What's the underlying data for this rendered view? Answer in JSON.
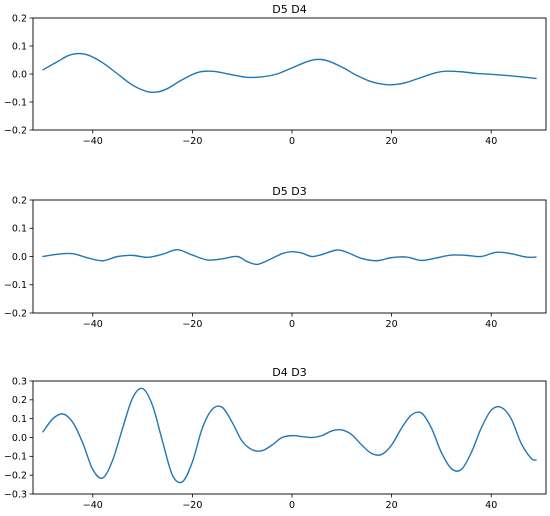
{
  "chart_data": [
    {
      "type": "line",
      "title": "D5  D4",
      "xlabel": "",
      "ylabel": "",
      "xlim": [
        -52,
        51
      ],
      "ylim": [
        -0.2,
        0.2
      ],
      "xticks": [
        -40,
        -20,
        0,
        20,
        40
      ],
      "yticks": [
        -0.2,
        -0.1,
        0.0,
        0.1,
        0.2
      ],
      "ytick_labels": [
        "−0.2",
        "−0.1",
        "0.0",
        "0.1",
        "0.2"
      ],
      "xtick_labels": [
        "−40",
        "−20",
        "0",
        "20",
        "40"
      ],
      "color": "#1f77b4",
      "series": [
        {
          "x": [
            -50,
            -47,
            -45,
            -43,
            -41,
            -38,
            -35,
            -32,
            -29,
            -27,
            -25,
            -22,
            -19,
            -17,
            -15,
            -12,
            -9,
            -6,
            -3,
            0,
            3,
            5,
            7,
            10,
            13,
            16,
            19,
            21,
            23,
            26,
            29,
            31,
            34,
            37,
            40,
            43,
            46,
            49
          ],
          "values": [
            0.015,
            0.045,
            0.065,
            0.073,
            0.068,
            0.04,
            0.0,
            -0.04,
            -0.063,
            -0.064,
            -0.052,
            -0.02,
            0.005,
            0.01,
            0.008,
            -0.003,
            -0.012,
            -0.01,
            0.0,
            0.022,
            0.044,
            0.052,
            0.048,
            0.025,
            -0.005,
            -0.028,
            -0.038,
            -0.037,
            -0.03,
            -0.012,
            0.005,
            0.01,
            0.008,
            0.002,
            -0.001,
            -0.005,
            -0.01,
            -0.016
          ]
        }
      ]
    },
    {
      "type": "line",
      "title": "D5  D3",
      "xlabel": "",
      "ylabel": "",
      "xlim": [
        -52,
        51
      ],
      "ylim": [
        -0.2,
        0.2
      ],
      "xticks": [
        -40,
        -20,
        0,
        20,
        40
      ],
      "yticks": [
        -0.2,
        -0.1,
        0.0,
        0.1,
        0.2
      ],
      "ytick_labels": [
        "−0.2",
        "−0.1",
        "0.0",
        "0.1",
        "0.2"
      ],
      "xtick_labels": [
        "−40",
        "−20",
        "0",
        "20",
        "40"
      ],
      "color": "#1f77b4",
      "series": [
        {
          "x": [
            -50,
            -47,
            -44,
            -41,
            -38,
            -35,
            -32,
            -29,
            -26,
            -23,
            -20,
            -17,
            -14,
            -11,
            -9,
            -7,
            -5,
            -2,
            0,
            2,
            4,
            6,
            9,
            11,
            14,
            17,
            20,
            23,
            26,
            29,
            32,
            35,
            38,
            41,
            44,
            47,
            49
          ],
          "values": [
            0.0,
            0.008,
            0.01,
            -0.005,
            -0.015,
            0.0,
            0.004,
            -0.003,
            0.008,
            0.024,
            0.005,
            -0.012,
            -0.008,
            0.0,
            -0.018,
            -0.028,
            -0.015,
            0.01,
            0.017,
            0.012,
            0.0,
            0.007,
            0.023,
            0.015,
            -0.007,
            -0.015,
            -0.004,
            -0.002,
            -0.014,
            -0.005,
            0.005,
            0.004,
            0.0,
            0.015,
            0.01,
            -0.002,
            -0.002
          ]
        }
      ]
    },
    {
      "type": "line",
      "title": "D4  D3",
      "xlabel": "",
      "ylabel": "",
      "xlim": [
        -52,
        51
      ],
      "ylim": [
        -0.3,
        0.3
      ],
      "xticks": [
        -40,
        -20,
        0,
        20,
        40
      ],
      "yticks": [
        -0.3,
        -0.2,
        -0.1,
        0.0,
        0.1,
        0.2,
        0.3
      ],
      "ytick_labels": [
        "−0.3",
        "−0.2",
        "−0.1",
        "0.0",
        "0.1",
        "0.2",
        "0.3"
      ],
      "xtick_labels": [
        "−40",
        "−20",
        "0",
        "20",
        "40"
      ],
      "color": "#1f77b4",
      "series": [
        {
          "x": [
            -50,
            -48,
            -46,
            -44,
            -42,
            -40,
            -38,
            -36,
            -34,
            -32,
            -30,
            -28,
            -26,
            -24,
            -22,
            -20,
            -18,
            -16,
            -14,
            -12,
            -10,
            -8,
            -6,
            -4,
            -2,
            0,
            2,
            4,
            6,
            8,
            10,
            12,
            14,
            16,
            18,
            20,
            22,
            24,
            26,
            28,
            30,
            32,
            34,
            36,
            38,
            40,
            42,
            44,
            46,
            48,
            49
          ],
          "values": [
            0.03,
            0.1,
            0.125,
            0.08,
            -0.03,
            -0.17,
            -0.215,
            -0.12,
            0.05,
            0.21,
            0.26,
            0.17,
            -0.02,
            -0.2,
            -0.235,
            -0.13,
            0.05,
            0.15,
            0.16,
            0.08,
            -0.02,
            -0.065,
            -0.07,
            -0.04,
            0.0,
            0.01,
            0.005,
            0.0,
            0.01,
            0.035,
            0.04,
            0.015,
            -0.04,
            -0.085,
            -0.09,
            -0.04,
            0.05,
            0.12,
            0.13,
            0.05,
            -0.08,
            -0.165,
            -0.17,
            -0.08,
            0.05,
            0.145,
            0.16,
            0.1,
            -0.03,
            -0.11,
            -0.12
          ]
        }
      ]
    }
  ]
}
